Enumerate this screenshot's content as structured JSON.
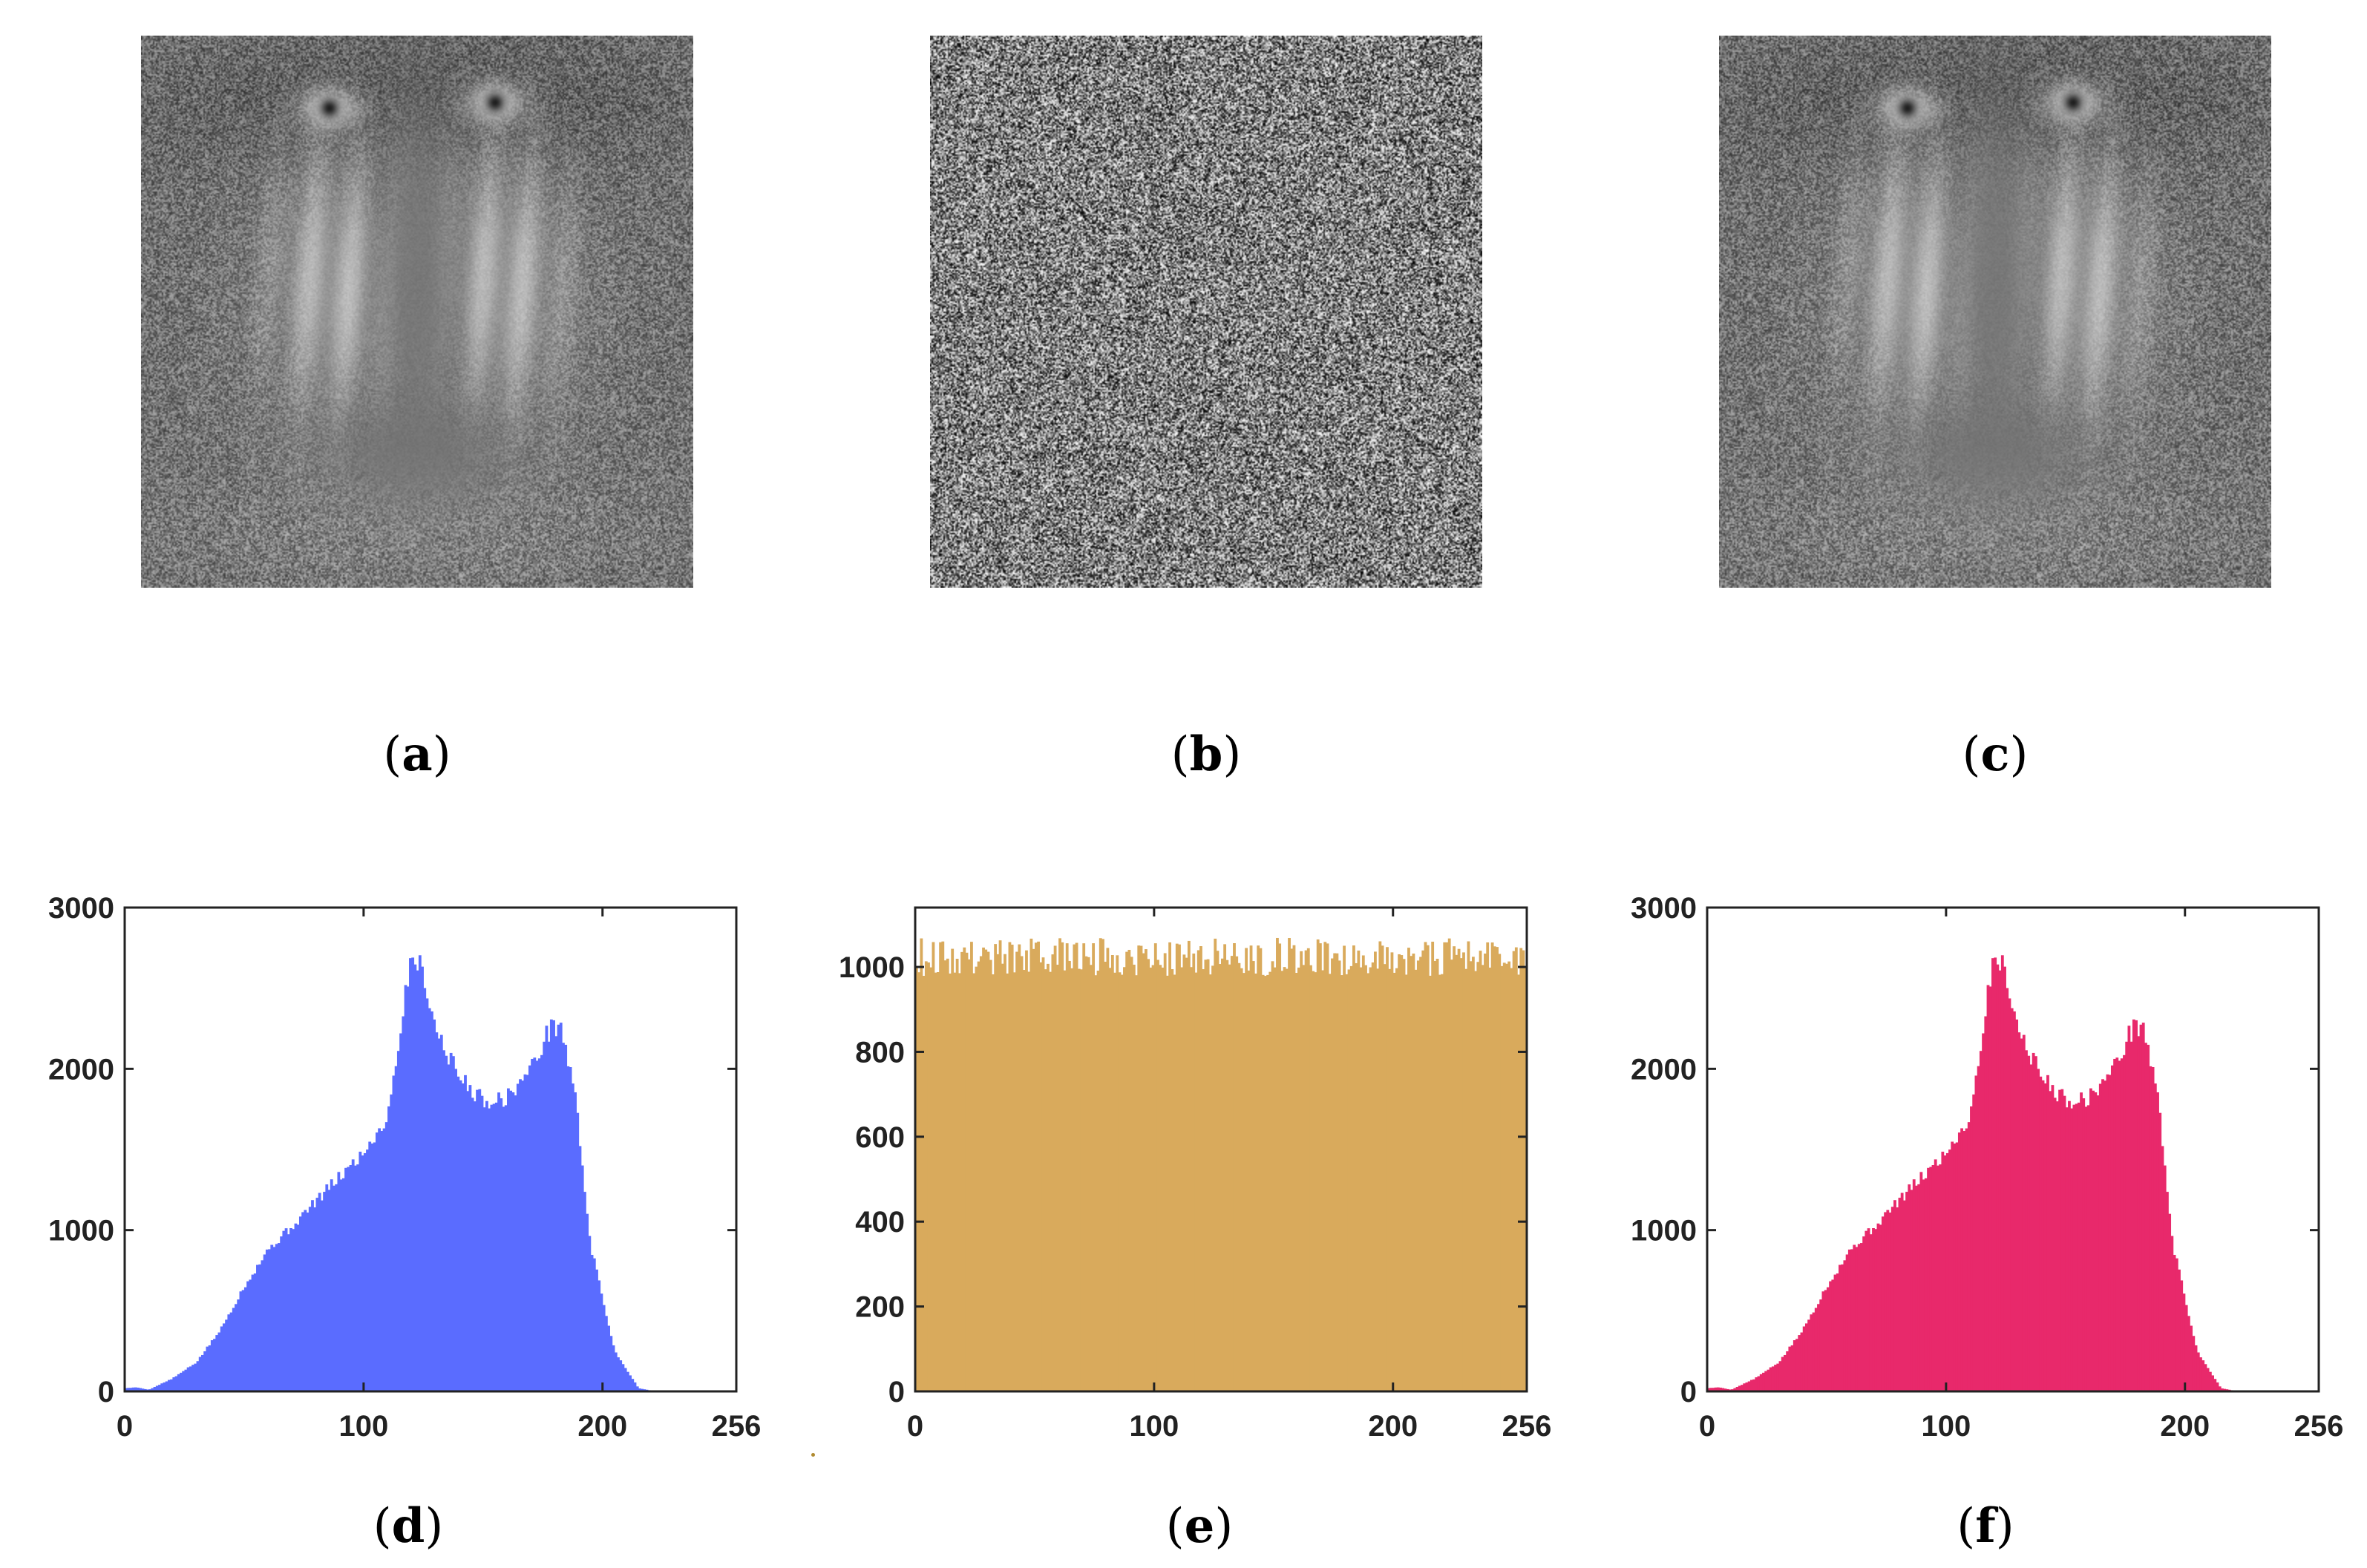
{
  "panels": {
    "a": {
      "caption_open": "(",
      "caption_letter": "a",
      "caption_close": ")",
      "image": "grayscale-baboon-plain-image"
    },
    "b": {
      "caption_open": "(",
      "caption_letter": "b",
      "caption_close": ")",
      "image": "encrypted-noise-image"
    },
    "c": {
      "caption_open": "(",
      "caption_letter": "c",
      "caption_close": ")",
      "image": "grayscale-baboon-decrypted-image"
    },
    "d": {
      "caption_open": "(",
      "caption_letter": "d",
      "caption_close": ")"
    },
    "e": {
      "caption_open": "(",
      "caption_letter": "e",
      "caption_close": ")"
    },
    "f": {
      "caption_open": "(",
      "caption_letter": "f",
      "caption_close": ")"
    }
  },
  "chart_data": [
    {
      "id": "d",
      "type": "bar",
      "color": "#5a6cff",
      "xlim": [
        0,
        256
      ],
      "ylim": [
        0,
        3000
      ],
      "x_ticks": [
        "0",
        "100",
        "200",
        "256"
      ],
      "x_tick_values": [
        0,
        100,
        200,
        256
      ],
      "y_ticks": [
        "0",
        "1000",
        "2000",
        "3000"
      ],
      "y_tick_values": [
        0,
        1000,
        2000,
        3000
      ],
      "profile": [
        [
          0,
          20
        ],
        [
          5,
          25
        ],
        [
          10,
          10
        ],
        [
          20,
          80
        ],
        [
          30,
          180
        ],
        [
          40,
          380
        ],
        [
          50,
          650
        ],
        [
          60,
          880
        ],
        [
          70,
          1020
        ],
        [
          80,
          1180
        ],
        [
          90,
          1330
        ],
        [
          100,
          1480
        ],
        [
          110,
          1700
        ],
        [
          115,
          2200
        ],
        [
          120,
          2720
        ],
        [
          125,
          2600
        ],
        [
          130,
          2250
        ],
        [
          140,
          1950
        ],
        [
          150,
          1800
        ],
        [
          160,
          1820
        ],
        [
          170,
          2000
        ],
        [
          178,
          2250
        ],
        [
          182,
          2280
        ],
        [
          188,
          1900
        ],
        [
          195,
          900
        ],
        [
          205,
          250
        ],
        [
          215,
          20
        ],
        [
          222,
          0
        ]
      ],
      "xlabel": "",
      "ylabel": "",
      "title": ""
    },
    {
      "id": "e",
      "type": "bar",
      "color": "#d9aa5c",
      "xlim": [
        0,
        256
      ],
      "ylim": [
        0,
        1140
      ],
      "x_ticks": [
        "0",
        "100",
        "200",
        "256"
      ],
      "x_tick_values": [
        0,
        100,
        200,
        256
      ],
      "y_ticks": [
        "0",
        "200",
        "400",
        "600",
        "800",
        "1000"
      ],
      "y_tick_values": [
        0,
        200,
        400,
        600,
        800,
        1000
      ],
      "profile": [
        [
          0,
          1024
        ],
        [
          256,
          1024
        ]
      ],
      "noise_amplitude": 45,
      "xlabel": "",
      "ylabel": "",
      "title": ""
    },
    {
      "id": "f",
      "type": "bar",
      "color": "#e8296b",
      "xlim": [
        0,
        256
      ],
      "ylim": [
        0,
        3000
      ],
      "x_ticks": [
        "0",
        "100",
        "200",
        "256"
      ],
      "x_tick_values": [
        0,
        100,
        200,
        256
      ],
      "y_ticks": [
        "0",
        "1000",
        "2000",
        "3000"
      ],
      "y_tick_values": [
        0,
        1000,
        2000,
        3000
      ],
      "profile": [
        [
          0,
          20
        ],
        [
          5,
          25
        ],
        [
          10,
          10
        ],
        [
          20,
          80
        ],
        [
          30,
          180
        ],
        [
          40,
          380
        ],
        [
          50,
          650
        ],
        [
          60,
          880
        ],
        [
          70,
          1020
        ],
        [
          80,
          1180
        ],
        [
          90,
          1330
        ],
        [
          100,
          1480
        ],
        [
          110,
          1700
        ],
        [
          115,
          2200
        ],
        [
          120,
          2720
        ],
        [
          125,
          2600
        ],
        [
          130,
          2250
        ],
        [
          140,
          1950
        ],
        [
          150,
          1800
        ],
        [
          160,
          1820
        ],
        [
          170,
          2000
        ],
        [
          178,
          2250
        ],
        [
          182,
          2280
        ],
        [
          188,
          1900
        ],
        [
          195,
          900
        ],
        [
          205,
          250
        ],
        [
          215,
          20
        ],
        [
          222,
          0
        ]
      ],
      "xlabel": "",
      "ylabel": "",
      "title": ""
    }
  ]
}
